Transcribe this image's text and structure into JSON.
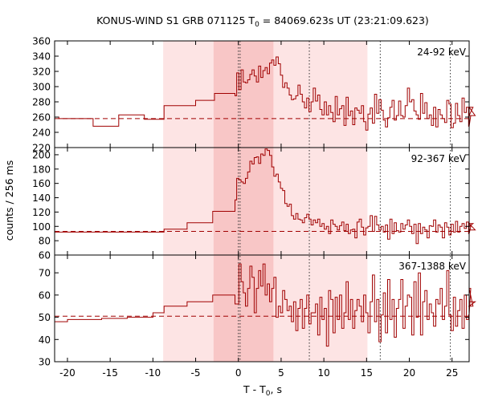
{
  "chart_data": {
    "type": "line",
    "title": "KONUS-WIND S1 GRB 071125 T",
    "title_sub": "0",
    "title_rest": " = 84069.623s UT (23:21:09.623)",
    "xlabel": "T - T",
    "xlabel_sub": "0",
    "xlabel_rest": ", s",
    "ylabel": "counts / 256 ms",
    "xlim": [
      -21.5,
      27
    ],
    "xticks": [
      -20,
      -15,
      -10,
      -5,
      0,
      5,
      10,
      15,
      20,
      25
    ],
    "shaded_regions": [
      {
        "from": -8.8,
        "to": 15.1,
        "level": "light"
      },
      {
        "from": -2.9,
        "to": 4.1,
        "level": "dark"
      }
    ],
    "vertical_dotted_lines": [
      0,
      0.2,
      8.3,
      16.6,
      24.8
    ],
    "colors": {
      "line": "#a00000",
      "shade_light": "#fde4e4",
      "shade_dark": "#f8c6c6"
    },
    "panels": [
      {
        "label": "24-92 keV",
        "ylim": [
          220,
          360
        ],
        "yticks": [
          220,
          240,
          260,
          280,
          300,
          320,
          340,
          360
        ],
        "background": 258,
        "pre_steps": [
          [
            -21.5,
            260
          ],
          [
            -21,
            258
          ],
          [
            -17,
            248
          ],
          [
            -14,
            263
          ],
          [
            -11,
            257
          ],
          [
            -8.7,
            275
          ],
          [
            -5,
            282
          ],
          [
            -2.8,
            291
          ],
          [
            -0.4,
            288
          ]
        ],
        "start": -0.2,
        "values": [
          318,
          296,
          322,
          306,
          305,
          309,
          316,
          322,
          314,
          306,
          327,
          312,
          321,
          325,
          317,
          331,
          335,
          328,
          339,
          330,
          315,
          299,
          305,
          298,
          289,
          283,
          284,
          288,
          302,
          290,
          280,
          272,
          285,
          267,
          280,
          298,
          281,
          289,
          270,
          263,
          280,
          263,
          275,
          266,
          254,
          287,
          263,
          271,
          275,
          249,
          286,
          262,
          268,
          250,
          272,
          269,
          265,
          275,
          254,
          243,
          264,
          272,
          252,
          290,
          265,
          283,
          269,
          256,
          247,
          259,
          273,
          282,
          256,
          262,
          281,
          262,
          260,
          275,
          298,
          280,
          283,
          268,
          263,
          257,
          291,
          265,
          279,
          258,
          263,
          249,
          273,
          247,
          270,
          263,
          258,
          253,
          282,
          277,
          246,
          252,
          278,
          262,
          254,
          285,
          266,
          273,
          248,
          262,
          273,
          262
        ]
      },
      {
        "label": "92-367 keV",
        "ylim": [
          60,
          210
        ],
        "yticks": [
          60,
          80,
          100,
          120,
          140,
          160,
          180,
          200
        ],
        "background": 93,
        "pre_steps": [
          [
            -21.5,
            92
          ],
          [
            -8.7,
            96
          ],
          [
            -6,
            105
          ],
          [
            -3,
            121
          ],
          [
            -0.4,
            137
          ]
        ],
        "start": -0.2,
        "values": [
          167,
          165,
          162,
          160,
          167,
          176,
          191,
          187,
          196,
          197,
          188,
          201,
          199,
          208,
          206,
          199,
          183,
          170,
          173,
          162,
          153,
          150,
          132,
          128,
          131,
          115,
          110,
          118,
          110,
          109,
          105,
          112,
          117,
          110,
          102,
          109,
          105,
          110,
          100,
          104,
          96,
          100,
          90,
          109,
          103,
          100,
          95,
          101,
          106,
          94,
          103,
          90,
          95,
          96,
          84,
          106,
          110,
          99,
          88,
          98,
          100,
          115,
          93,
          114,
          102,
          95,
          100,
          92,
          102,
          82,
          110,
          90,
          105,
          94,
          92,
          104,
          96,
          102,
          109,
          100,
          90,
          103,
          76,
          104,
          90,
          99,
          95,
          84,
          101,
          100,
          109,
          92,
          102,
          99,
          84,
          105,
          99,
          88,
          103,
          92,
          107,
          92,
          100,
          104,
          97,
          106,
          90,
          100,
          104,
          95
        ]
      },
      {
        "label": "367-1388 keV",
        "ylim": [
          30,
          78
        ],
        "yticks": [
          30,
          40,
          50,
          60,
          70
        ],
        "background": 50.5,
        "pre_steps": [
          [
            -21.5,
            48
          ],
          [
            -20,
            49
          ],
          [
            -16,
            49.5
          ],
          [
            -13,
            50
          ],
          [
            -10,
            52
          ],
          [
            -8.7,
            55
          ],
          [
            -6,
            57
          ],
          [
            -3,
            60
          ],
          [
            -0.4,
            56
          ]
        ],
        "start": -0.2,
        "values": [
          56,
          74,
          66,
          61,
          55,
          63,
          73,
          68,
          52,
          63,
          71,
          64,
          74,
          60,
          65,
          57,
          63,
          68,
          50,
          55,
          52,
          62,
          58,
          53,
          55,
          48,
          57,
          44,
          54,
          58,
          45,
          54,
          60,
          47,
          52,
          52,
          56,
          42,
          59,
          49,
          54,
          37,
          62,
          58,
          43,
          59,
          49,
          60,
          45,
          52,
          66,
          49,
          58,
          45,
          53,
          58,
          55,
          48,
          60,
          52,
          43,
          57,
          69,
          48,
          58,
          39,
          51,
          61,
          43,
          67,
          49,
          58,
          41,
          54,
          58,
          67,
          45,
          55,
          60,
          59,
          42,
          66,
          50,
          70,
          42,
          57,
          62,
          49,
          56,
          52,
          46,
          58,
          56,
          63,
          49,
          55,
          71,
          51,
          44,
          59,
          46,
          53,
          58,
          45,
          60,
          49,
          51,
          63,
          55,
          57
        ]
      }
    ]
  }
}
